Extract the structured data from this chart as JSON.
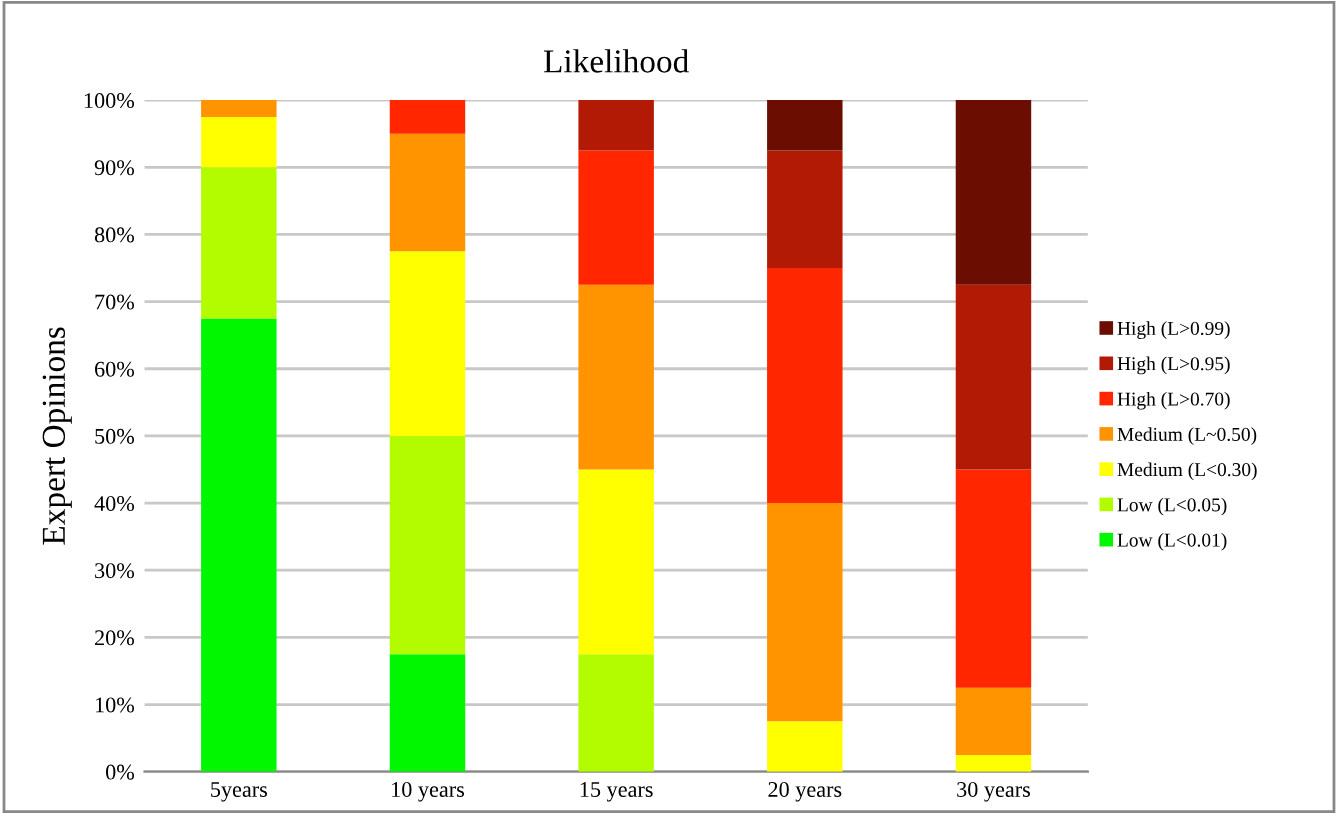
{
  "chart_data": {
    "type": "bar",
    "title": "Likelihood",
    "ylabel": "Expert Opinions",
    "stacked": true,
    "categories": [
      "5years",
      "10 years",
      "15 years",
      "20 years",
      "30 years"
    ],
    "series": [
      {
        "name": "Low (L<0.01)",
        "color": "#00f700",
        "values": [
          67.5,
          17.5,
          null,
          null,
          null
        ]
      },
      {
        "name": "Low (L<0.05)",
        "color": "#b3fc00",
        "values": [
          22.5,
          32.5,
          17.5,
          null,
          null
        ]
      },
      {
        "name": "Medium (L<0.30)",
        "color": "#ffff00",
        "values": [
          7.5,
          27.5,
          27.5,
          7.5,
          2.5
        ]
      },
      {
        "name": "Medium (L~0.50)",
        "color": "#ff9400",
        "values": [
          2.5,
          17.5,
          27.5,
          32.5,
          10
        ]
      },
      {
        "name": "High (L>0.70)",
        "color": "#ff2600",
        "values": [
          null,
          5,
          20,
          35,
          32.5
        ]
      },
      {
        "name": "High (L>0.95)",
        "color": "#b31a05",
        "values": [
          null,
          null,
          7.5,
          17.5,
          27.5
        ]
      },
      {
        "name": "High (L>0.99)",
        "color": "#6b0d00",
        "values": [
          null,
          null,
          null,
          7.5,
          27.5
        ]
      }
    ],
    "ylim": [
      0,
      100
    ],
    "yticks": [
      {
        "value": 0,
        "label": "0%"
      },
      {
        "value": 10,
        "label": "10%"
      },
      {
        "value": 20,
        "label": "20%"
      },
      {
        "value": 30,
        "label": "30%"
      },
      {
        "value": 40,
        "label": "40%"
      },
      {
        "value": 50,
        "label": "50%"
      },
      {
        "value": 60,
        "label": "60%"
      },
      {
        "value": 70,
        "label": "70%"
      },
      {
        "value": 80,
        "label": "80%"
      },
      {
        "value": 90,
        "label": "90%"
      },
      {
        "value": 100,
        "label": "100%"
      }
    ],
    "grid": "y",
    "legend": "right"
  }
}
